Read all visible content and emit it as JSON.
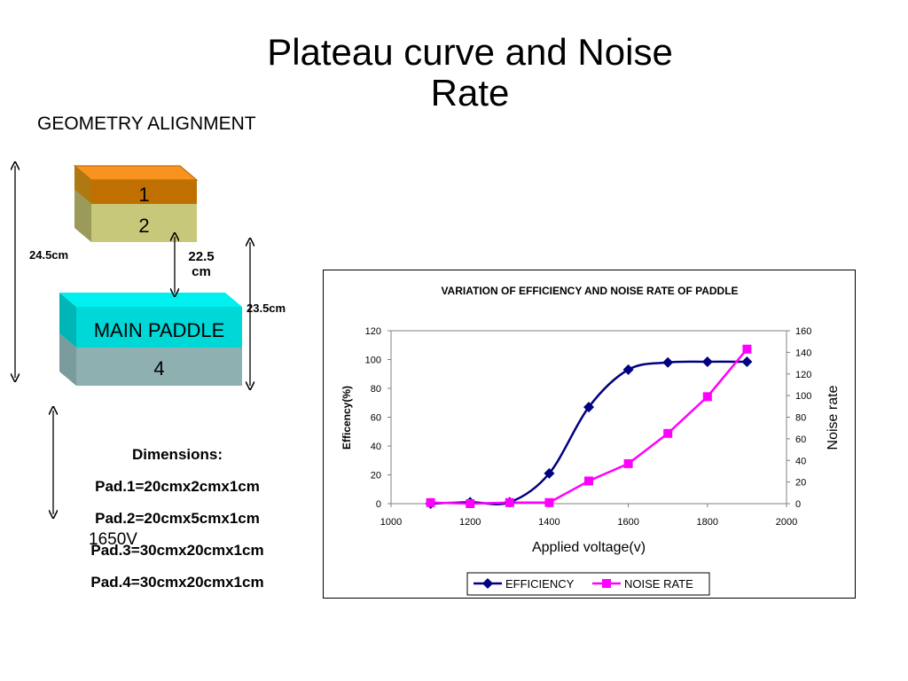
{
  "slide": {
    "title_line1": "Plateau curve and Noise",
    "title_line2": "Rate",
    "subtitle": "GEOMETRY ALIGNMENT"
  },
  "geometry": {
    "pad1_label": "1",
    "pad2_label": "2",
    "main_paddle_label": "MAIN PADDLE",
    "pad4_label": "4",
    "dim_total": "24.5cm",
    "dim_gap_line1": "22.5",
    "dim_gap_line2": "cm",
    "dim_lower": "23.5cm",
    "voltage_note": "1650V",
    "colors": {
      "pad1_top": "#f7931e",
      "pad1_front": "#c07000",
      "pad2_front": "#c8c87a",
      "main_top": "#00e5e5",
      "main_front": "#00d7d7",
      "pad4_front": "#8fb0b0"
    }
  },
  "dimensions": {
    "heading": "Dimensions:",
    "pad1": "Pad.1=20cmx2cmx1cm",
    "pad2": "Pad.2=20cmx5cmx1cm",
    "pad3": "Pad.3=30cmx20cmx1cm",
    "pad4": "Pad.4=30cmx20cmx1cm"
  },
  "chart_data": {
    "type": "line",
    "title": "VARIATION OF EFFICIENCY AND NOISE RATE OF PADDLE",
    "xlabel": "Applied voltage(v)",
    "ylabel": "Efficency(%)",
    "y2label": "Noise rate",
    "xlim": [
      1000,
      2000
    ],
    "xticks": [
      1000,
      1200,
      1400,
      1600,
      1800,
      2000
    ],
    "ylim": [
      0,
      120
    ],
    "yticks": [
      0,
      20,
      40,
      60,
      80,
      100,
      120
    ],
    "y2lim": [
      0,
      160
    ],
    "y2ticks": [
      0,
      20,
      40,
      60,
      80,
      100,
      120,
      140,
      160
    ],
    "grid": false,
    "legend_position": "bottom",
    "series": [
      {
        "name": "EFFICIENCY",
        "axis": "left",
        "color": "#000080",
        "marker": "diamond",
        "smooth": true,
        "x": [
          1100,
          1200,
          1300,
          1400,
          1500,
          1600,
          1700,
          1800,
          1900
        ],
        "values": [
          0,
          1,
          1,
          21,
          67,
          93,
          98,
          98.5,
          98.5
        ]
      },
      {
        "name": "NOISE RATE",
        "axis": "right",
        "color": "#ff00ff",
        "marker": "square",
        "smooth": false,
        "x": [
          1100,
          1200,
          1300,
          1400,
          1500,
          1600,
          1700,
          1800,
          1900
        ],
        "values": [
          1,
          0,
          1,
          1,
          21,
          37,
          65,
          99,
          143
        ]
      }
    ]
  }
}
